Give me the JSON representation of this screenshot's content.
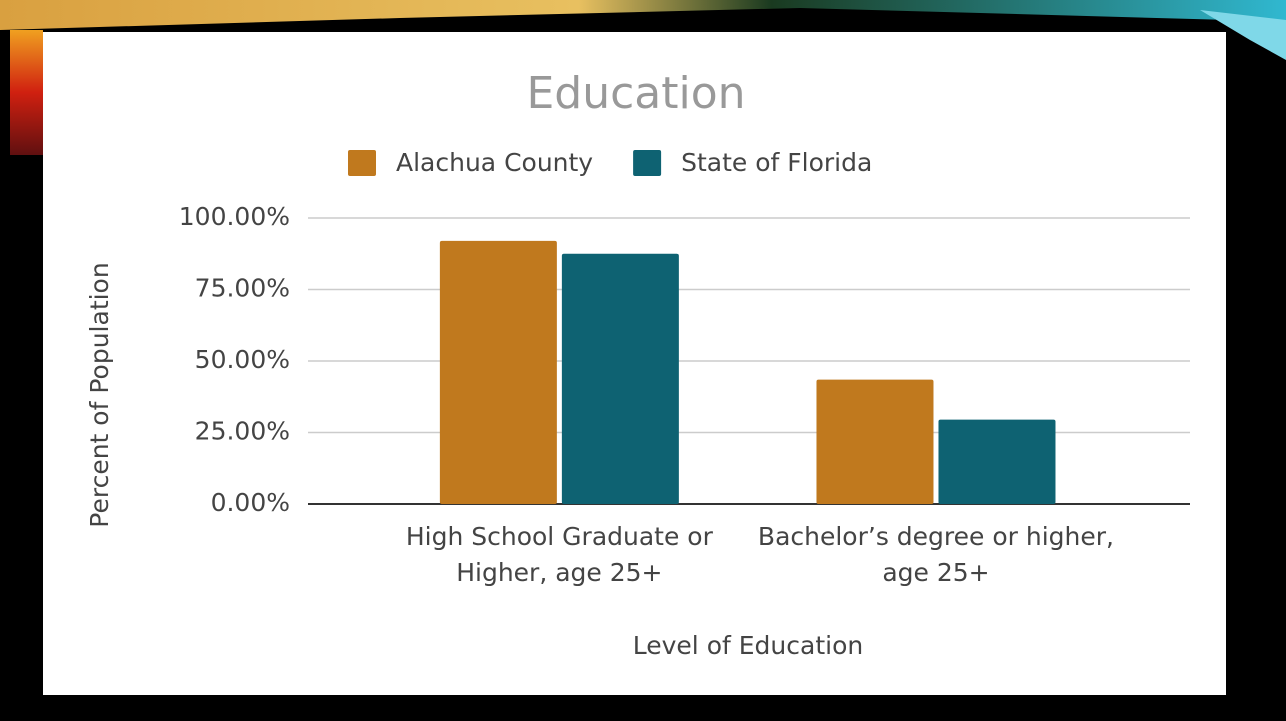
{
  "chart_data": {
    "type": "bar",
    "title": "Education",
    "categories": [
      "High School Graduate or Higher, age 25+",
      "Bachelor’s degree or higher, age 25+"
    ],
    "series": [
      {
        "name": "Alachua County",
        "color": "#c0791e",
        "values": [
          92,
          43.5
        ]
      },
      {
        "name": "State of Florida",
        "color": "#0e6272",
        "values": [
          87.5,
          29.5
        ]
      }
    ],
    "xlabel": "Level of Education",
    "ylabel": "Percent of Population",
    "ylim": [
      0,
      100
    ],
    "yticks": [
      {
        "value": 0,
        "label": "0.00%"
      },
      {
        "value": 25,
        "label": "25.00%"
      },
      {
        "value": 50,
        "label": "50.00%"
      },
      {
        "value": 75,
        "label": "75.00%"
      },
      {
        "value": 100,
        "label": "100.00%"
      }
    ],
    "grid": true,
    "legend": "top"
  }
}
